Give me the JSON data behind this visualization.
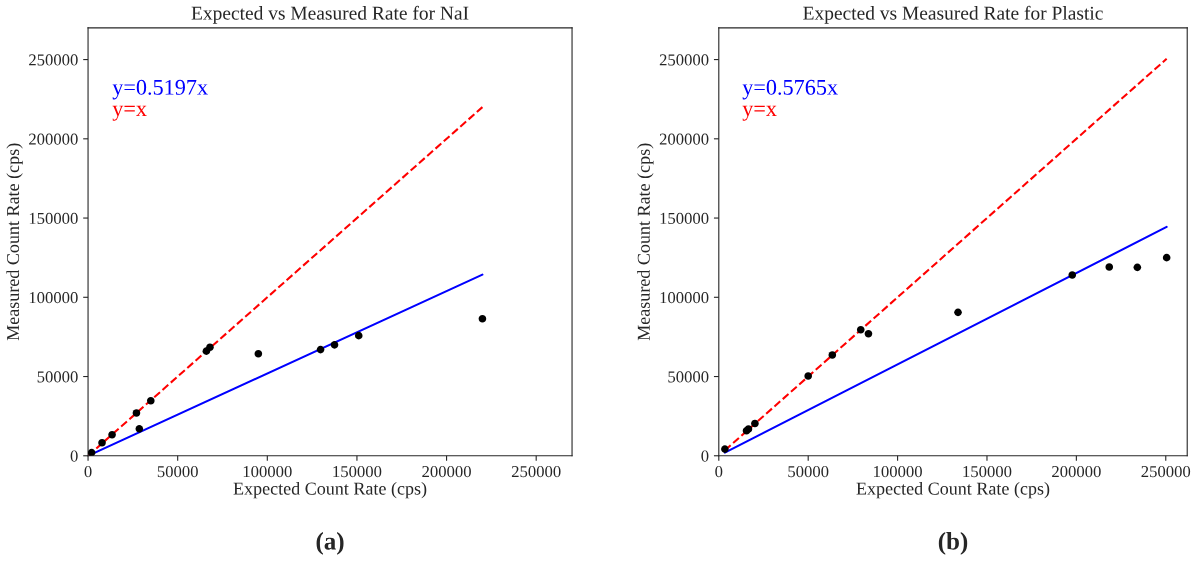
{
  "chart_data": [
    {
      "type": "scatter",
      "title": "Expected vs Measured Rate for NaI",
      "xlabel": "Expected Count Rate (cps)",
      "ylabel": "Measured Count Rate (cps)",
      "xlim": [
        0,
        270000
      ],
      "ylim": [
        0,
        270000
      ],
      "xticks": [
        0,
        50000,
        100000,
        150000,
        200000,
        250000
      ],
      "yticks": [
        0,
        50000,
        100000,
        150000,
        200000,
        250000
      ],
      "grid": false,
      "legend": "top left",
      "annotations": [
        "(a)"
      ],
      "series": [
        {
          "color": "#000000",
          "marker": "circle",
          "x": [
            2000,
            7800,
            13400,
            27000,
            28600,
            35000,
            66000,
            68000,
            95000,
            129700,
            137500,
            151000,
            220000
          ],
          "values": [
            2000,
            8200,
            13300,
            27000,
            17000,
            34700,
            66000,
            68500,
            64400,
            67000,
            70000,
            75800,
            86500
          ]
        },
        {
          "type": "line",
          "name": "y=0.5197x",
          "color": "#0000ff",
          "line_style": "solid",
          "x": [
            0,
            220000
          ],
          "values": [
            0,
            114300
          ]
        },
        {
          "type": "line",
          "name": "y=x",
          "color": "#ff0000",
          "line_style": "dashed",
          "x": [
            0,
            220000
          ],
          "values": [
            0,
            220000
          ]
        }
      ]
    },
    {
      "type": "scatter",
      "title": "Expected vs Measured Rate for Plastic",
      "xlabel": "Expected Count Rate (cps)",
      "ylabel": "Measured Count Rate (cps)",
      "xlim": [
        0,
        262000
      ],
      "ylim": [
        0,
        270000
      ],
      "xticks": [
        0,
        50000,
        100000,
        150000,
        200000,
        250000
      ],
      "yticks": [
        0,
        50000,
        100000,
        150000,
        200000,
        250000
      ],
      "grid": false,
      "legend": "top left",
      "annotations": [
        "(b)"
      ],
      "series": [
        {
          "color": "#000000",
          "marker": "circle",
          "x": [
            3400,
            15500,
            16600,
            20200,
            50000,
            63500,
            79400,
            83700,
            133800,
            197700,
            218400,
            234100,
            250500
          ],
          "values": [
            4200,
            15800,
            16900,
            20400,
            50300,
            63600,
            79500,
            77000,
            90500,
            114100,
            119100,
            118900,
            125000
          ]
        },
        {
          "type": "line",
          "name": "y=0.5765x",
          "color": "#0000ff",
          "line_style": "solid",
          "x": [
            3400,
            250500
          ],
          "values": [
            2000,
            144400
          ]
        },
        {
          "type": "line",
          "name": "y=x",
          "color": "#ff0000",
          "line_style": "dashed",
          "x": [
            3400,
            250500
          ],
          "values": [
            3400,
            250500
          ]
        }
      ]
    }
  ]
}
